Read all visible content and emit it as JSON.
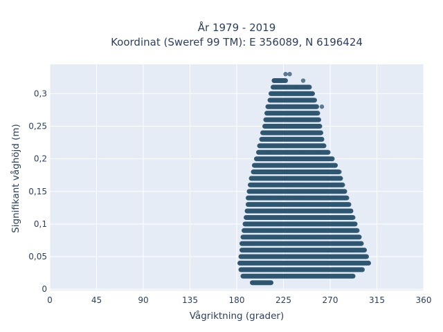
{
  "chart_data": {
    "type": "scatter",
    "title_line1": "År 1979 - 2019",
    "title_line2": "Koordinat (Sweref 99 TM): E 356089, N 6196424",
    "xlabel": "Vågriktning (grader)",
    "ylabel": "Signifikant våghöjd (m)",
    "xlim": [
      0,
      360
    ],
    "ylim": [
      -0.002,
      0.345
    ],
    "xticks": [
      0,
      45,
      90,
      135,
      180,
      225,
      270,
      315,
      360
    ],
    "xtick_labels": [
      "0",
      "45",
      "90",
      "135",
      "180",
      "225",
      "270",
      "315",
      "360"
    ],
    "yticks": [
      0,
      0.05,
      0.1,
      0.15,
      0.2,
      0.25,
      0.3
    ],
    "ytick_labels": [
      "0",
      "0,05",
      "0,1",
      "0,15",
      "0,2",
      "0,25",
      "0,3"
    ],
    "grid": true,
    "marker_color": "#2e5670",
    "plot_background": "#e5ecf6",
    "y_step": 0.01,
    "bands": [
      {
        "y": 0.01,
        "x": [
          195,
          213
        ]
      },
      {
        "y": 0.02,
        "x": [
          186,
          292
        ]
      },
      {
        "y": 0.03,
        "x": [
          184,
          301
        ]
      },
      {
        "y": 0.04,
        "x": [
          183,
          307
        ]
      },
      {
        "y": 0.05,
        "x": [
          184,
          305
        ]
      },
      {
        "y": 0.06,
        "x": [
          185,
          303
        ]
      },
      {
        "y": 0.07,
        "x": [
          185,
          300
        ]
      },
      {
        "y": 0.08,
        "x": [
          186,
          298
        ]
      },
      {
        "y": 0.09,
        "x": [
          187,
          296
        ]
      },
      {
        "y": 0.1,
        "x": [
          188,
          294
        ]
      },
      {
        "y": 0.11,
        "x": [
          189,
          292
        ]
      },
      {
        "y": 0.12,
        "x": [
          190,
          290
        ]
      },
      {
        "y": 0.13,
        "x": [
          191,
          288
        ]
      },
      {
        "y": 0.14,
        "x": [
          191,
          286
        ]
      },
      {
        "y": 0.15,
        "x": [
          192,
          284
        ]
      },
      {
        "y": 0.16,
        "x": [
          193,
          282
        ]
      },
      {
        "y": 0.17,
        "x": [
          194,
          280
        ]
      },
      {
        "y": 0.18,
        "x": [
          196,
          278
        ]
      },
      {
        "y": 0.19,
        "x": [
          197,
          275
        ]
      },
      {
        "y": 0.2,
        "x": [
          199,
          272
        ]
      },
      {
        "y": 0.21,
        "x": [
          201,
          268
        ]
      },
      {
        "y": 0.22,
        "x": [
          202,
          264
        ]
      },
      {
        "y": 0.23,
        "x": [
          204,
          262
        ]
      },
      {
        "y": 0.24,
        "x": [
          205,
          261
        ]
      },
      {
        "y": 0.25,
        "x": [
          207,
          260
        ]
      },
      {
        "y": 0.26,
        "x": [
          208,
          259
        ]
      },
      {
        "y": 0.27,
        "x": [
          209,
          258
        ]
      },
      {
        "y": 0.28,
        "x": [
          210,
          257
        ]
      },
      {
        "y": 0.29,
        "x": [
          212,
          255
        ]
      },
      {
        "y": 0.3,
        "x": [
          213,
          253
        ]
      },
      {
        "y": 0.31,
        "x": [
          215,
          250
        ]
      },
      {
        "y": 0.32,
        "x": [
          216,
          227
        ]
      },
      {
        "y": 0.33,
        "x": [
          227,
          231
        ]
      }
    ],
    "sparse_points": [
      {
        "x": 195,
        "y": 0.01
      },
      {
        "x": 213,
        "y": 0.01
      },
      {
        "x": 216,
        "y": 0.32
      },
      {
        "x": 222,
        "y": 0.32
      },
      {
        "x": 244,
        "y": 0.32
      },
      {
        "x": 227,
        "y": 0.33
      },
      {
        "x": 231,
        "y": 0.33
      },
      {
        "x": 236,
        "y": 0.31
      },
      {
        "x": 226,
        "y": 0.31
      },
      {
        "x": 262,
        "y": 0.28
      },
      {
        "x": 279,
        "y": 0.18
      }
    ]
  }
}
